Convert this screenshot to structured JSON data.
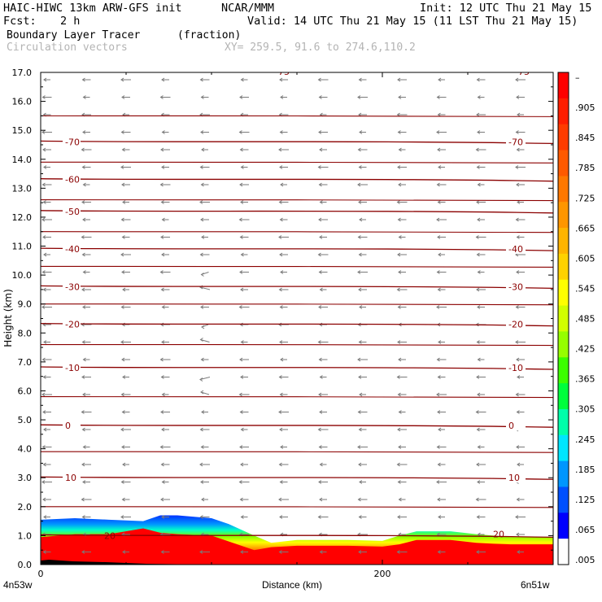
{
  "header": {
    "model_line": "HAIC-HIWC 13km ARW-GFS init",
    "org": "NCAR/MMM",
    "init": "Init: 12 UTC Thu 21 May 15",
    "fcst_label": "Fcst:",
    "fcst_value": "2 h",
    "valid": "Valid: 14 UTC Thu 21 May 15 (11 LST Thu 21 May 15)",
    "field_name": "Boundary Layer Tracer",
    "field_units": "(fraction)",
    "vector_name": "Circulation vectors",
    "xy_range": "XY= 259.5, 91.6 to 274.6,110.2"
  },
  "chart_data": {
    "type": "heatmap",
    "xlabel": "Distance (km)",
    "ylabel": "Height (km)",
    "xlim": [
      0,
      300
    ],
    "ylim": [
      0,
      17
    ],
    "x_ticks": [
      "0",
      "200"
    ],
    "x_tick_values": [
      0,
      200
    ],
    "y_ticks": [
      "0.0",
      "1.0",
      "2.0",
      "3.0",
      "4.0",
      "5.0",
      "6.0",
      "7.0",
      "8.0",
      "9.0",
      "10.0",
      "11.0",
      "12.0",
      "13.0",
      "14.0",
      "15.0",
      "16.0",
      "17.0"
    ],
    "left_endpoint": "4n53w",
    "right_endpoint": "6n51w",
    "colorbar": {
      "labels": [
        "–",
        ".905",
        ".845",
        ".785",
        ".725",
        ".665",
        ".605",
        ".545",
        ".485",
        ".425",
        ".365",
        ".305",
        ".245",
        ".185",
        ".125",
        ".065",
        ".005"
      ],
      "colors": [
        "#ff0000",
        "#ff1e00",
        "#ff3c00",
        "#ff5a00",
        "#ff7800",
        "#ff9600",
        "#ffb400",
        "#ffd200",
        "#ffff00",
        "#d2ff00",
        "#96ff00",
        "#3cff00",
        "#00ff3c",
        "#00ffaa",
        "#00e6ff",
        "#0096ff",
        "#0050ff",
        "#0000ff",
        "#ffffff"
      ]
    },
    "temperature_contours": {
      "levels": [
        20,
        10,
        0,
        -10,
        -20,
        -30,
        -40,
        -50,
        -60,
        -70
      ],
      "labels": [
        "20",
        "10",
        "0",
        "-10",
        "-20",
        "-30",
        "-40",
        "-50",
        "-60",
        "-70"
      ],
      "heights_km": [
        1.0,
        3.0,
        4.8,
        6.8,
        8.3,
        9.6,
        10.9,
        12.2,
        13.3,
        14.6
      ],
      "left_label_levels": [
        "10",
        "0",
        "-10",
        "-20",
        "-30",
        "-40",
        "-50",
        "-60",
        "-70"
      ],
      "right_label_levels": [
        "10",
        "0",
        "-10",
        "-20",
        "-30",
        "-40",
        "-70"
      ],
      "top_partial_labels": [
        "-75",
        "-75"
      ],
      "color": "#8b0000"
    },
    "tracer_layer": {
      "x_km": [
        0,
        20,
        40,
        60,
        70,
        80,
        100,
        110,
        125,
        135,
        150,
        180,
        200,
        210,
        220,
        240,
        255,
        265,
        275,
        300
      ],
      "top_km": [
        1.55,
        1.6,
        1.55,
        1.5,
        1.7,
        1.7,
        1.6,
        1.4,
        1.0,
        0.75,
        0.85,
        0.85,
        0.82,
        1.0,
        1.15,
        1.15,
        1.05,
        1.0,
        0.95,
        0.95
      ],
      "red_top_km": [
        0.95,
        1.05,
        1.05,
        1.25,
        1.1,
        1.05,
        1.0,
        0.8,
        0.5,
        0.6,
        0.65,
        0.65,
        0.62,
        0.7,
        0.85,
        0.85,
        0.75,
        0.72,
        0.7,
        0.7
      ]
    }
  }
}
